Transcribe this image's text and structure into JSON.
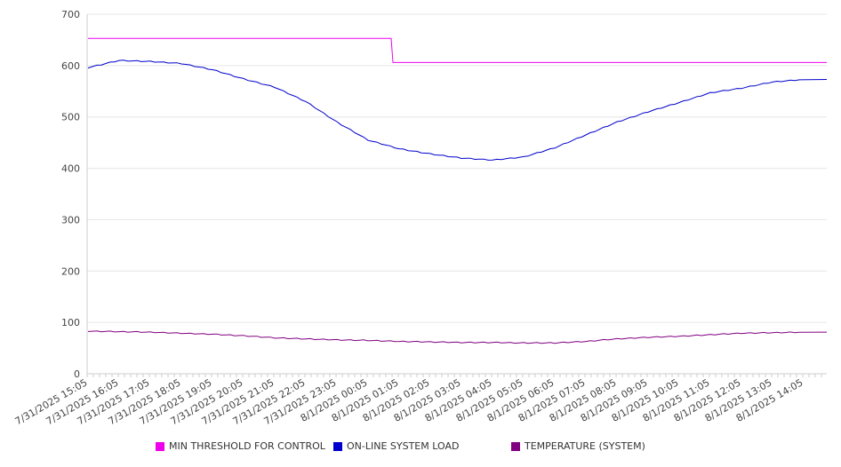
{
  "chart_data": {
    "type": "line",
    "title": "",
    "xlabel": "",
    "ylabel": "",
    "ylim": [
      0,
      700
    ],
    "yticks": [
      0,
      100,
      200,
      300,
      400,
      500,
      600,
      700
    ],
    "grid": true,
    "legend_position": "bottom",
    "categories": [
      "7/31/2025 15:05",
      "7/31/2025 16:05",
      "7/31/2025 17:05",
      "7/31/2025 18:05",
      "7/31/2025 19:05",
      "7/31/2025 20:05",
      "7/31/2025 21:05",
      "7/31/2025 22:05",
      "7/31/2025 23:05",
      "8/1/2025 00:05",
      "8/1/2025 01:05",
      "8/1/2025 02:05",
      "8/1/2025 03:05",
      "8/1/2025 04:05",
      "8/1/2025 05:05",
      "8/1/2025 06:05",
      "8/1/2025 07:05",
      "8/1/2025 08:05",
      "8/1/2025 09:05",
      "8/1/2025 10:05",
      "8/1/2025 11:05",
      "8/1/2025 12:05",
      "8/1/2025 13:05",
      "8/1/2025 14:05"
    ],
    "series": [
      {
        "name": "MIN THRESHOLD FOR CONTROL",
        "color": "#ee00ee",
        "values": [
          653,
          653,
          653,
          653,
          653,
          653,
          653,
          653,
          653,
          653,
          606,
          606,
          606,
          606,
          606,
          606,
          606,
          606,
          606,
          606,
          606,
          606,
          606,
          606
        ]
      },
      {
        "name": "ON-LINE SYSTEM LOAD",
        "color": "#0000cc",
        "values": [
          596,
          610,
          608,
          604,
          592,
          574,
          558,
          530,
          490,
          455,
          438,
          428,
          420,
          416,
          422,
          440,
          465,
          490,
          510,
          528,
          547,
          556,
          568,
          573
        ]
      },
      {
        "name": "TEMPERATURE (SYSTEM)",
        "color": "#800080",
        "values": [
          83,
          82,
          81,
          79,
          77,
          74,
          70,
          68,
          66,
          65,
          63,
          62,
          61,
          61,
          60,
          60,
          63,
          68,
          71,
          73,
          76,
          79,
          80,
          81
        ]
      }
    ]
  }
}
